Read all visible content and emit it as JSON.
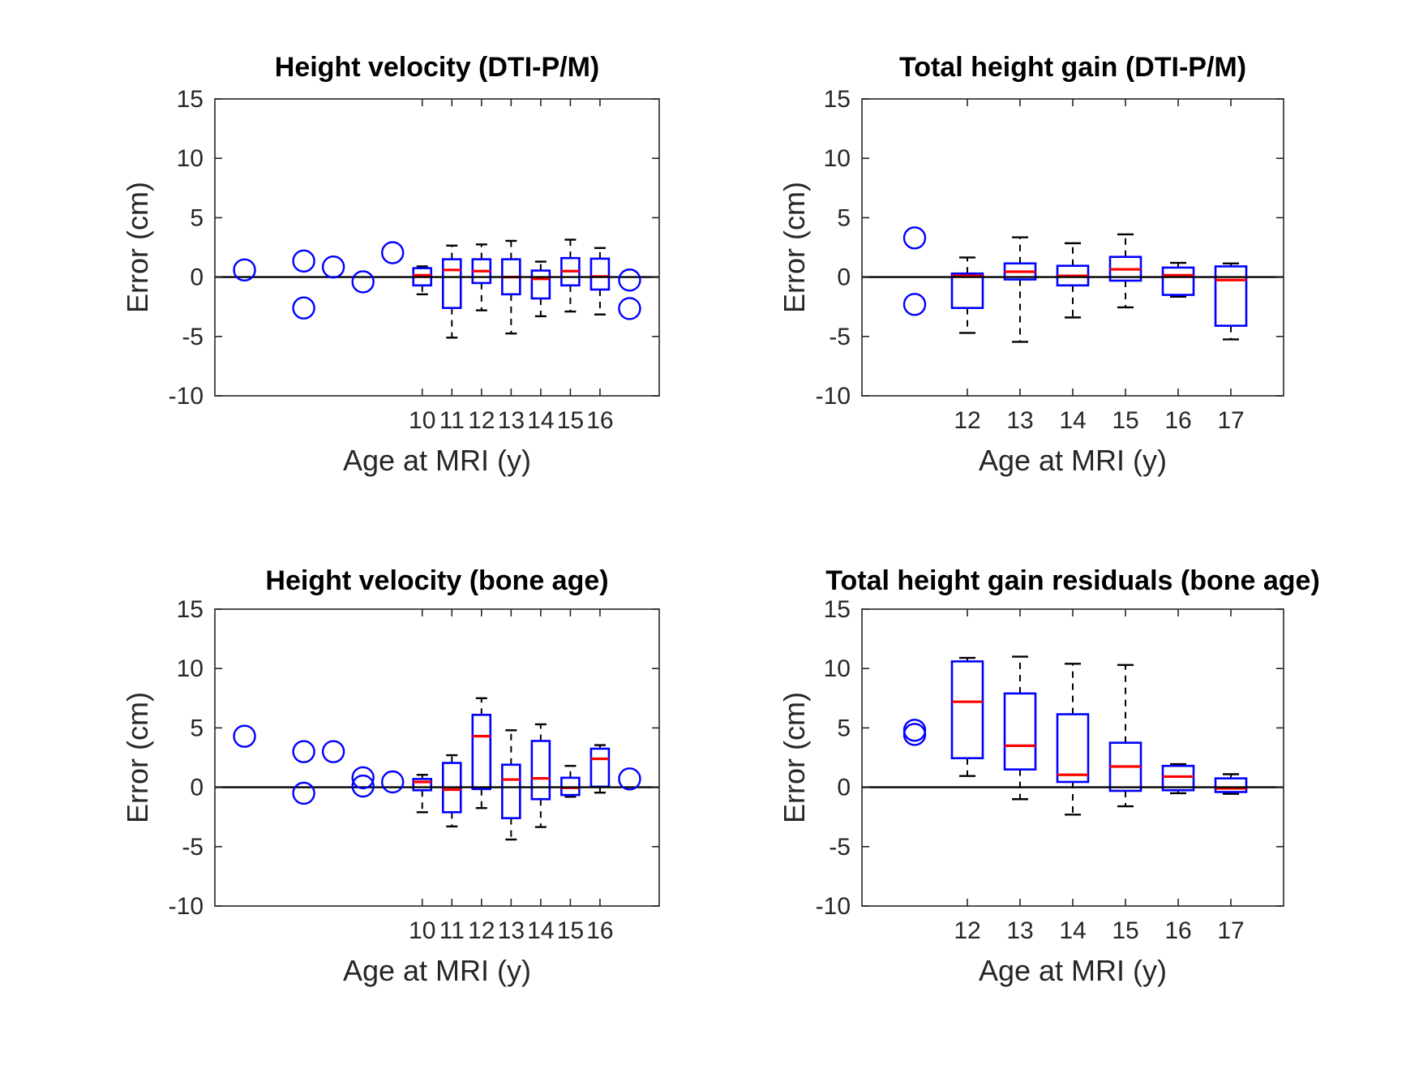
{
  "figure": {
    "background": "#ffffff",
    "box_color": "#0000ff",
    "median_color": "#ff0000",
    "whisker_color": "#000000",
    "refline_color": "#000000",
    "axis_color": "#262626",
    "title_color": "#000000"
  },
  "chart_data": [
    {
      "type": "box",
      "title": "Height velocity (DTI-P/M)",
      "xlabel": "Age at MRI (y)",
      "ylabel": "Error (cm)",
      "xlim": [
        3,
        18
      ],
      "ylim": [
        -10,
        15
      ],
      "xticks": [
        10,
        11,
        12,
        13,
        14,
        15,
        16
      ],
      "yticks": [
        -10,
        -5,
        0,
        5,
        10,
        15
      ],
      "refline_y": 0,
      "grid": false,
      "boxes": [
        {
          "x": 10,
          "q1": -0.7,
          "median": 0.15,
          "q3": 0.75,
          "whisker_low": -1.45,
          "whisker_high": 0.9
        },
        {
          "x": 11,
          "q1": -2.6,
          "median": 0.6,
          "q3": 1.5,
          "whisker_low": -5.1,
          "whisker_high": 2.65
        },
        {
          "x": 12,
          "q1": -0.5,
          "median": 0.5,
          "q3": 1.5,
          "whisker_low": -2.8,
          "whisker_high": 2.75
        },
        {
          "x": 13,
          "q1": -1.45,
          "median": 0.0,
          "q3": 1.5,
          "whisker_low": -4.75,
          "whisker_high": 3.05
        },
        {
          "x": 14,
          "q1": -1.8,
          "median": -0.15,
          "q3": 0.55,
          "whisker_low": -3.3,
          "whisker_high": 1.3
        },
        {
          "x": 15,
          "q1": -0.7,
          "median": 0.5,
          "q3": 1.6,
          "whisker_low": -2.9,
          "whisker_high": 3.15
        },
        {
          "x": 16,
          "q1": -1.05,
          "median": 0.05,
          "q3": 1.55,
          "whisker_low": -3.15,
          "whisker_high": 2.45
        }
      ],
      "points": [
        {
          "x": 4,
          "y": 0.6
        },
        {
          "x": 6,
          "y": 1.35
        },
        {
          "x": 6,
          "y": -2.6
        },
        {
          "x": 7,
          "y": 0.85
        },
        {
          "x": 8,
          "y": -0.4
        },
        {
          "x": 9,
          "y": 2.05
        },
        {
          "x": 17,
          "y": -0.25
        },
        {
          "x": 17,
          "y": -2.65
        }
      ]
    },
    {
      "type": "box",
      "title": "Total height gain (DTI-P/M)",
      "xlabel": "Age at MRI (y)",
      "ylabel": "Error (cm)",
      "xlim": [
        10,
        18
      ],
      "ylim": [
        -10,
        15
      ],
      "xticks": [
        12,
        13,
        14,
        15,
        16,
        17
      ],
      "yticks": [
        -10,
        -5,
        0,
        5,
        10,
        15
      ],
      "refline_y": 0,
      "grid": false,
      "boxes": [
        {
          "x": 12,
          "q1": -2.6,
          "median": 0.1,
          "q3": 0.3,
          "whisker_low": -4.7,
          "whisker_high": 1.65
        },
        {
          "x": 13,
          "q1": -0.2,
          "median": 0.45,
          "q3": 1.15,
          "whisker_low": -5.45,
          "whisker_high": 3.35
        },
        {
          "x": 14,
          "q1": -0.7,
          "median": 0.1,
          "q3": 0.95,
          "whisker_low": -3.4,
          "whisker_high": 2.85
        },
        {
          "x": 15,
          "q1": -0.3,
          "median": 0.65,
          "q3": 1.7,
          "whisker_low": -2.55,
          "whisker_high": 3.6
        },
        {
          "x": 16,
          "q1": -1.5,
          "median": 0.15,
          "q3": 0.8,
          "whisker_low": -1.65,
          "whisker_high": 1.2
        },
        {
          "x": 17,
          "q1": -4.1,
          "median": -0.25,
          "q3": 0.9,
          "whisker_low": -5.25,
          "whisker_high": 1.15
        }
      ],
      "points": [
        {
          "x": 11,
          "y": 3.3
        },
        {
          "x": 11,
          "y": -2.3
        }
      ]
    },
    {
      "type": "box",
      "title": "Height velocity (bone age)",
      "xlabel": "Age at MRI (y)",
      "ylabel": "Error (cm)",
      "xlim": [
        3,
        18
      ],
      "ylim": [
        -10,
        15
      ],
      "xticks": [
        10,
        11,
        12,
        13,
        14,
        15,
        16
      ],
      "yticks": [
        -10,
        -5,
        0,
        5,
        10,
        15
      ],
      "refline_y": 0,
      "grid": false,
      "boxes": [
        {
          "x": 10,
          "q1": -0.25,
          "median": 0.45,
          "q3": 0.7,
          "whisker_low": -2.1,
          "whisker_high": 1.05
        },
        {
          "x": 11,
          "q1": -2.1,
          "median": -0.2,
          "q3": 2.05,
          "whisker_low": -3.3,
          "whisker_high": 2.7
        },
        {
          "x": 12,
          "q1": -0.15,
          "median": 4.3,
          "q3": 6.1,
          "whisker_low": -1.75,
          "whisker_high": 7.5
        },
        {
          "x": 13,
          "q1": -2.6,
          "median": 0.65,
          "q3": 1.9,
          "whisker_low": -4.4,
          "whisker_high": 4.8
        },
        {
          "x": 14,
          "q1": -1.0,
          "median": 0.75,
          "q3": 3.9,
          "whisker_low": -3.35,
          "whisker_high": 5.3
        },
        {
          "x": 15,
          "q1": -0.65,
          "median": -0.05,
          "q3": 0.8,
          "whisker_low": -0.8,
          "whisker_high": 1.8
        },
        {
          "x": 16,
          "q1": 0.05,
          "median": 2.4,
          "q3": 3.25,
          "whisker_low": -0.45,
          "whisker_high": 3.55
        }
      ],
      "points": [
        {
          "x": 4,
          "y": 4.3
        },
        {
          "x": 6,
          "y": 3.0
        },
        {
          "x": 6,
          "y": -0.5
        },
        {
          "x": 7,
          "y": 3.0
        },
        {
          "x": 8,
          "y": 0.8
        },
        {
          "x": 8,
          "y": 0.1
        },
        {
          "x": 9,
          "y": 0.45
        },
        {
          "x": 17,
          "y": 0.7
        }
      ]
    },
    {
      "type": "box",
      "title": "Total height gain residuals (bone age)",
      "xlabel": "Age at MRI (y)",
      "ylabel": "Error (cm)",
      "xlim": [
        10,
        18
      ],
      "ylim": [
        -10,
        15
      ],
      "xticks": [
        12,
        13,
        14,
        15,
        16,
        17
      ],
      "yticks": [
        -10,
        -5,
        0,
        5,
        10,
        15
      ],
      "refline_y": 0,
      "grid": false,
      "boxes": [
        {
          "x": 12,
          "q1": 2.45,
          "median": 7.2,
          "q3": 10.6,
          "whisker_low": 0.95,
          "whisker_high": 10.9
        },
        {
          "x": 13,
          "q1": 1.5,
          "median": 3.5,
          "q3": 7.9,
          "whisker_low": -1.0,
          "whisker_high": 11.0
        },
        {
          "x": 14,
          "q1": 0.45,
          "median": 1.05,
          "q3": 6.15,
          "whisker_low": -2.3,
          "whisker_high": 10.4
        },
        {
          "x": 15,
          "q1": -0.3,
          "median": 1.75,
          "q3": 3.75,
          "whisker_low": -1.6,
          "whisker_high": 10.3
        },
        {
          "x": 16,
          "q1": -0.25,
          "median": 0.9,
          "q3": 1.8,
          "whisker_low": -0.5,
          "whisker_high": 1.95
        },
        {
          "x": 17,
          "q1": -0.4,
          "median": -0.1,
          "q3": 0.75,
          "whisker_low": -0.55,
          "whisker_high": 1.1
        }
      ],
      "points": [
        {
          "x": 11,
          "y": 4.8
        },
        {
          "x": 11,
          "y": 4.45
        }
      ]
    }
  ]
}
